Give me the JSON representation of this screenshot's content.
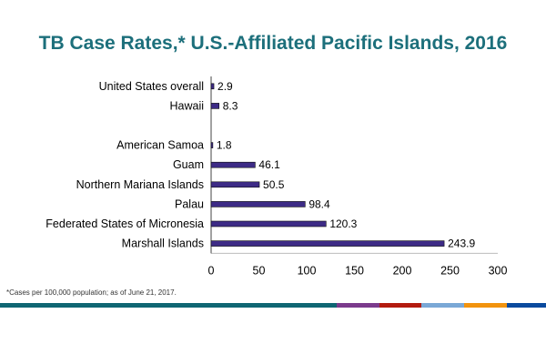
{
  "chart_data": {
    "type": "bar",
    "orientation": "horizontal",
    "title": "TB Case Rates,* U.S.-Affiliated Pacific Islands, 2016",
    "categories": [
      "United States overall",
      "Hawaii",
      "",
      "American Samoa",
      "Guam",
      "Northern Mariana Islands",
      "Palau",
      "Federated States of Micronesia",
      "Marshall Islands"
    ],
    "values": [
      2.9,
      8.3,
      null,
      1.8,
      46.1,
      50.5,
      98.4,
      120.3,
      243.9
    ],
    "data_labels": [
      "2.9",
      "8.3",
      "",
      "1.8",
      "46.1",
      "50.5",
      "98.4",
      "120.3",
      "243.9"
    ],
    "xlim": [
      0,
      300
    ],
    "x_ticks": [
      "0",
      "50",
      "100",
      "150",
      "200",
      "250",
      "300"
    ],
    "xlabel": "",
    "ylabel": "",
    "grid": false,
    "bar_color": "#3d2b86"
  },
  "footnote": "*Cases per 100,000  population; as of June 21, 2017.",
  "band_colors": [
    "#0f6673",
    "#7b3a8c",
    "#b31b0f",
    "#7aa8d6",
    "#f2930e",
    "#0a4a9e"
  ]
}
